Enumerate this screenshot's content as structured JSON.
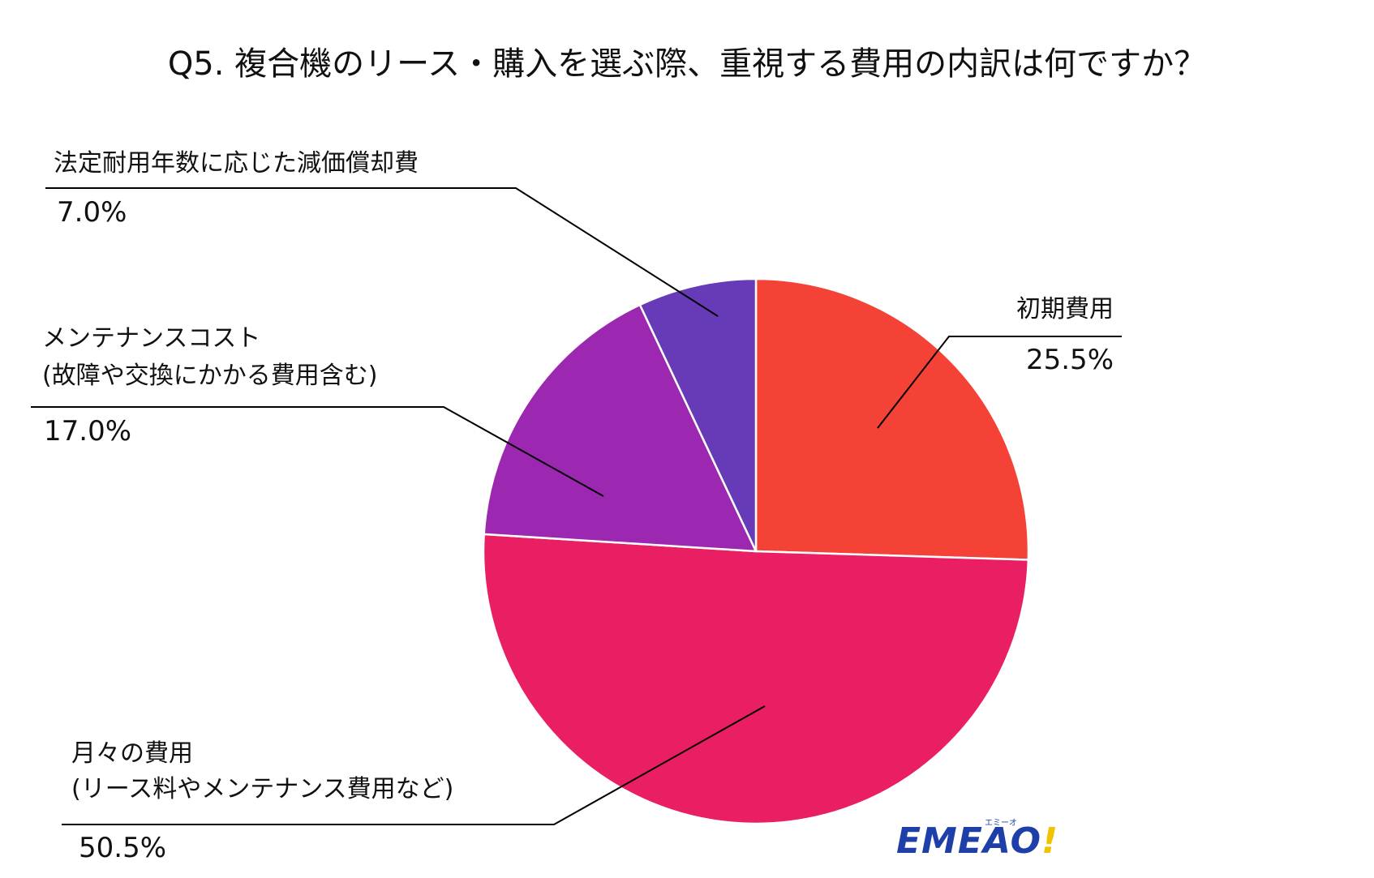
{
  "title": "Q5. 複合機のリース・購入を選ぶ際、重視する費用の内訳は何ですか？",
  "chart_data": {
    "type": "pie",
    "title": "Q5. 複合機のリース・購入を選ぶ際、重視する費用の内訳は何ですか？",
    "slices": [
      {
        "label": "初期費用",
        "value": 25.5,
        "value_label": "25.5%",
        "color": "#F44336"
      },
      {
        "label": "月々の費用\n(リース料やメンテナンス費用など)",
        "label_lines": [
          "月々の費用",
          "(リース料やメンテナンス費用など)"
        ],
        "value": 50.5,
        "value_label": "50.5%",
        "color": "#E91E63"
      },
      {
        "label": "メンテナンスコスト\n(故障や交換にかかる費用含む)",
        "label_lines": [
          "メンテナンスコスト",
          "(故障や交換にかかる費用含む)"
        ],
        "value": 17.0,
        "value_label": "17.0%",
        "color": "#9C27B0"
      },
      {
        "label": "法定耐用年数に応じた減価償却費",
        "value": 7.0,
        "value_label": "7.0%",
        "color": "#673AB7"
      }
    ],
    "start_angle": "12 o'clock",
    "direction": "clockwise",
    "legend": "none"
  },
  "logo": {
    "text": "EMEAO",
    "mark": "!",
    "sub": "エミーオ"
  }
}
